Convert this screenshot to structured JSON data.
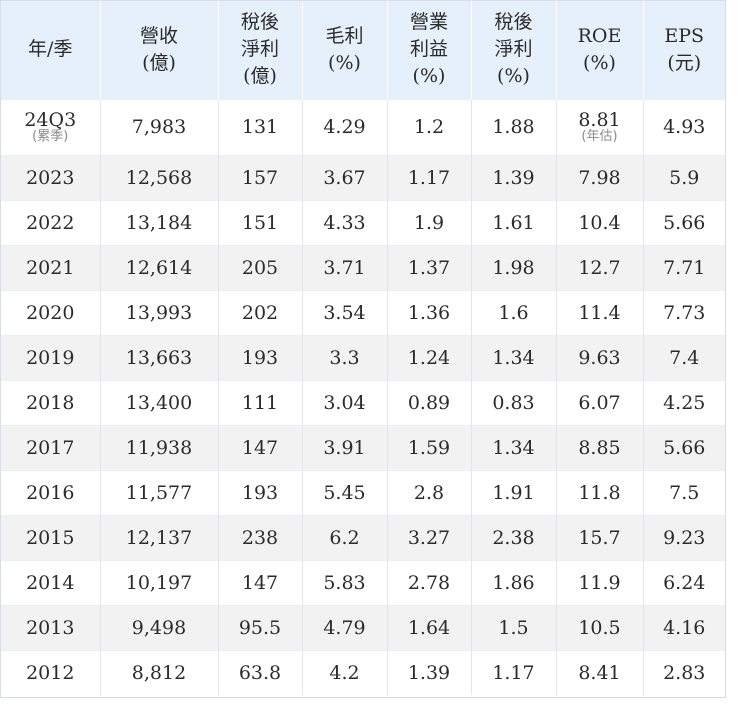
{
  "headers": [
    [
      "年/季"
    ],
    [
      "營收",
      "(億)"
    ],
    [
      "稅後",
      "淨利",
      "(億)"
    ],
    [
      "毛利",
      "(%)"
    ],
    [
      "營業",
      "利益",
      "(%)"
    ],
    [
      "稅後",
      "淨利",
      "(%)"
    ],
    [
      "ROE",
      "(%)"
    ],
    [
      "EPS",
      "(元)"
    ]
  ],
  "first_row": {
    "period": "24Q3",
    "period_note": "(累季)",
    "revenue": "7,983",
    "net_income": "131",
    "gross_margin": "4.29",
    "operating_margin": "1.2",
    "net_margin": "1.88",
    "roe": "8.81",
    "roe_note": "(年估)",
    "eps": "4.93"
  },
  "rows": [
    [
      "2023",
      "12,568",
      "157",
      "3.67",
      "1.17",
      "1.39",
      "7.98",
      "5.9"
    ],
    [
      "2022",
      "13,184",
      "151",
      "4.33",
      "1.9",
      "1.61",
      "10.4",
      "5.66"
    ],
    [
      "2021",
      "12,614",
      "205",
      "3.71",
      "1.37",
      "1.98",
      "12.7",
      "7.71"
    ],
    [
      "2020",
      "13,993",
      "202",
      "3.54",
      "1.36",
      "1.6",
      "11.4",
      "7.73"
    ],
    [
      "2019",
      "13,663",
      "193",
      "3.3",
      "1.24",
      "1.34",
      "9.63",
      "7.4"
    ],
    [
      "2018",
      "13,400",
      "111",
      "3.04",
      "0.89",
      "0.83",
      "6.07",
      "4.25"
    ],
    [
      "2017",
      "11,938",
      "147",
      "3.91",
      "1.59",
      "1.34",
      "8.85",
      "5.66"
    ],
    [
      "2016",
      "11,577",
      "193",
      "5.45",
      "2.8",
      "1.91",
      "11.8",
      "7.5"
    ],
    [
      "2015",
      "12,137",
      "238",
      "6.2",
      "3.27",
      "2.38",
      "15.7",
      "9.23"
    ],
    [
      "2014",
      "10,197",
      "147",
      "5.83",
      "2.78",
      "1.86",
      "11.9",
      "6.24"
    ],
    [
      "2013",
      "9,498",
      "95.5",
      "4.79",
      "1.64",
      "1.5",
      "10.5",
      "4.16"
    ],
    [
      "2012",
      "8,812",
      "63.8",
      "4.2",
      "1.39",
      "1.17",
      "8.41",
      "2.83"
    ]
  ]
}
